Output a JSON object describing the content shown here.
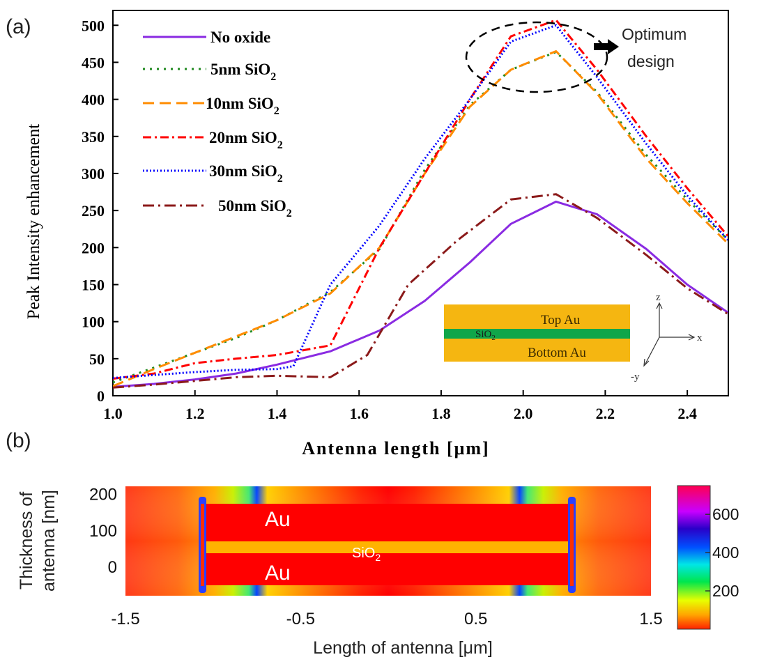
{
  "panel_a_label": "(a)",
  "panel_b_label": "(b)",
  "chart_data": [
    {
      "type": "line",
      "xlabel": "Antenna length [μm]",
      "ylabel": "Peak Intensity enhancement",
      "xlim": [
        1.0,
        2.5
      ],
      "ylim": [
        0,
        520
      ],
      "xticks": [
        "1.0",
        "1.2",
        "1.4",
        "1.6",
        "1.8",
        "2.0",
        "2.2",
        "2.4"
      ],
      "yticks": [
        "0",
        "50",
        "100",
        "150",
        "200",
        "250",
        "300",
        "350",
        "400",
        "450",
        "500"
      ],
      "legend_position": "top-left",
      "series": [
        {
          "name": "No oxide",
          "name_main": "No oxide",
          "name_sub": "",
          "color": "#8a2be2",
          "dash": "solid",
          "x": [
            1.0,
            1.1,
            1.2,
            1.3,
            1.4,
            1.53,
            1.65,
            1.76,
            1.87,
            1.97,
            2.08,
            2.18,
            2.3,
            2.4,
            2.5
          ],
          "y": [
            12,
            16,
            22,
            30,
            42,
            60,
            88,
            128,
            180,
            232,
            262,
            245,
            198,
            150,
            112
          ]
        },
        {
          "name": "5nm SiO2",
          "name_main": "5nm SiO",
          "name_sub": "2",
          "color": "#228b22",
          "dash": "dot",
          "x": [
            1.0,
            1.1,
            1.2,
            1.3,
            1.4,
            1.53,
            1.65,
            1.76,
            1.87,
            1.97,
            2.08,
            2.18,
            2.3,
            2.4,
            2.5
          ],
          "y": [
            18,
            38,
            58,
            78,
            102,
            140,
            198,
            305,
            392,
            440,
            464,
            410,
            325,
            265,
            210
          ]
        },
        {
          "name": "10nm SiO2",
          "name_main": "10nm SiO",
          "name_sub": "2",
          "color": "#ff8c00",
          "dash": "dash",
          "x": [
            1.0,
            1.1,
            1.2,
            1.3,
            1.4,
            1.53,
            1.65,
            1.76,
            1.87,
            1.97,
            2.08,
            2.18,
            2.3,
            2.4,
            2.5
          ],
          "y": [
            13,
            36,
            58,
            80,
            102,
            138,
            200,
            300,
            390,
            440,
            465,
            408,
            320,
            260,
            205
          ]
        },
        {
          "name": "20nm SiO2",
          "name_main": "20nm SiO",
          "name_sub": "2",
          "color": "#ff0000",
          "dash": "dashdot",
          "x": [
            1.0,
            1.1,
            1.2,
            1.3,
            1.4,
            1.53,
            1.65,
            1.76,
            1.87,
            1.97,
            2.08,
            2.18,
            2.3,
            2.4,
            2.5
          ],
          "y": [
            23,
            30,
            44,
            50,
            55,
            68,
            200,
            300,
            400,
            485,
            507,
            440,
            350,
            280,
            215
          ]
        },
        {
          "name": "30nm SiO2",
          "name_main": "30nm SiO",
          "name_sub": "2",
          "color": "#0000ff",
          "dash": "densedot",
          "x": [
            1.0,
            1.1,
            1.2,
            1.3,
            1.4,
            1.44,
            1.53,
            1.65,
            1.76,
            1.87,
            1.97,
            2.08,
            2.18,
            2.3,
            2.4,
            2.5
          ],
          "y": [
            24,
            28,
            32,
            35,
            36,
            40,
            150,
            230,
            320,
            400,
            478,
            500,
            430,
            340,
            270,
            210
          ]
        },
        {
          "name": "50nm SiO2",
          "name_main": "50nm SiO",
          "name_sub": "2",
          "color": "#8b1a1a",
          "dash": "longdashdot",
          "x": [
            1.0,
            1.1,
            1.2,
            1.3,
            1.4,
            1.53,
            1.62,
            1.72,
            1.84,
            1.97,
            2.08,
            2.18,
            2.3,
            2.4,
            2.5
          ],
          "y": [
            11,
            15,
            20,
            25,
            27,
            25,
            55,
            150,
            210,
            265,
            272,
            240,
            190,
            145,
            110
          ]
        }
      ],
      "annotations": {
        "optimum_line1": "Optimum",
        "optimum_line2": "design",
        "inset": {
          "top_layer": "Top Au",
          "middle_layer_main": "SiO",
          "middle_layer_sub": "2",
          "bottom_layer": "Bottom Au",
          "axis_z": "z",
          "axis_x": "x",
          "axis_y": "-y"
        }
      }
    },
    {
      "type": "heatmap",
      "xlabel": "Length of antenna [μm]",
      "ylabel_line1": "Thickness of",
      "ylabel_line2": "antenna [nm]",
      "xlim": [
        -1.5,
        1.5
      ],
      "ylim": [
        -80,
        220
      ],
      "xticks": [
        "-1.5",
        "-0.5",
        "0.5",
        "1.5"
      ],
      "yticks": [
        "0",
        "100",
        "200"
      ],
      "colorbar_ticks": [
        "200",
        "400",
        "600"
      ],
      "colorbar_range": [
        0,
        750
      ],
      "labels": {
        "au_top": "Au",
        "au_bottom": "Au",
        "oxide_main": "SiO",
        "oxide_sub": "2"
      }
    }
  ]
}
